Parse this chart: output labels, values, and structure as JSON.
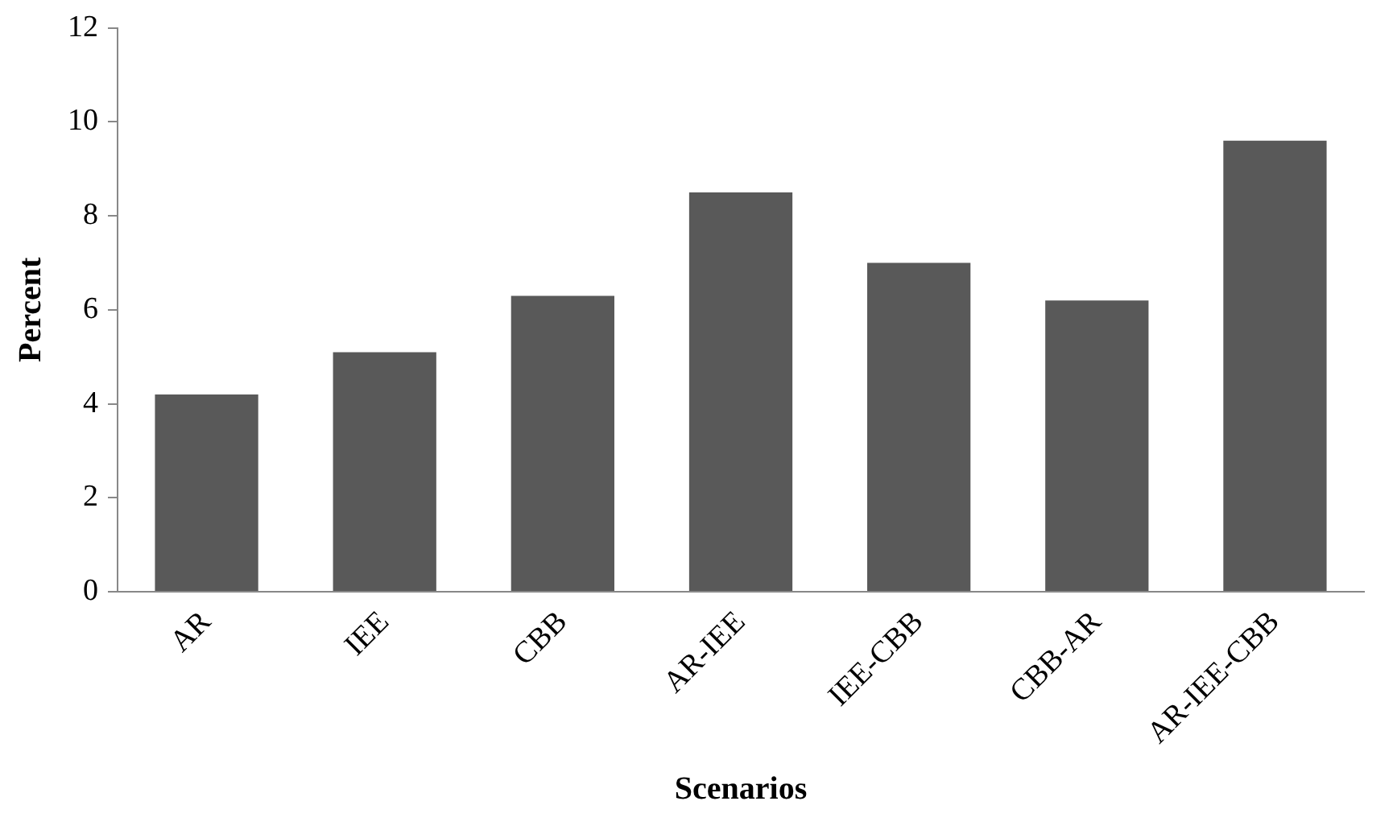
{
  "chart_data": {
    "type": "bar",
    "xlabel": "Scenarios",
    "ylabel": "Percent",
    "categories": [
      "AR",
      "IEE",
      "CBB",
      "AR-IEE",
      "IEE-CBB",
      "CBB-AR",
      "AR-IEE-CBB"
    ],
    "values": [
      4.2,
      5.1,
      6.3,
      8.5,
      7.0,
      6.2,
      9.6
    ],
    "color": "#595959",
    "ylim": [
      0,
      12
    ],
    "yticks": [
      0,
      2,
      4,
      6,
      8,
      10,
      12
    ],
    "grid": false,
    "legend": false
  }
}
